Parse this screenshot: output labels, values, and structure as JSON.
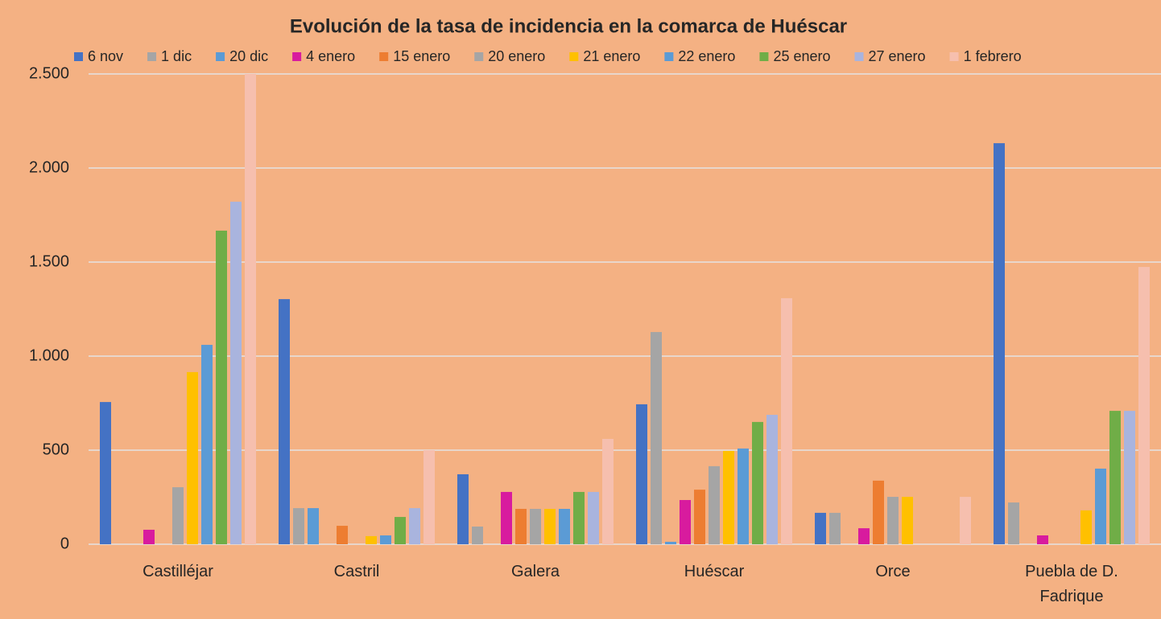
{
  "chart_data": {
    "type": "bar",
    "title": "Evolución de la tasa de incidencia en la comarca de Huéscar",
    "categories": [
      "Castilléjar",
      "Castril",
      "Galera",
      "Huéscar",
      "Orce",
      "Puebla de D. Fadrique"
    ],
    "series": [
      {
        "name": "6 nov",
        "color": "#4472c4",
        "values": [
          756,
          1303,
          372,
          744,
          167,
          2132
        ]
      },
      {
        "name": "1 dic",
        "color": "#a5a5a5",
        "values": [
          0,
          192,
          94,
          1128,
          167,
          222
        ]
      },
      {
        "name": "20 dic",
        "color": "#5b9bd5",
        "values": [
          0,
          192,
          0,
          13,
          0,
          0
        ]
      },
      {
        "name": "4 enero",
        "color": "#d81b9e",
        "values": [
          77,
          0,
          278,
          235,
          85,
          47
        ]
      },
      {
        "name": "15 enero",
        "color": "#ed7d31",
        "values": [
          0,
          98,
          188,
          290,
          338,
          0
        ]
      },
      {
        "name": "20 enero",
        "color": "#a5a5a5",
        "values": [
          303,
          0,
          188,
          415,
          252,
          0
        ]
      },
      {
        "name": "21 enero",
        "color": "#ffc000",
        "values": [
          915,
          43,
          188,
          496,
          252,
          180
        ]
      },
      {
        "name": "22 enero",
        "color": "#5b9bd5",
        "values": [
          1060,
          47,
          188,
          509,
          0,
          402
        ]
      },
      {
        "name": "25 enero",
        "color": "#70ad47",
        "values": [
          1667,
          145,
          278,
          650,
          0,
          709
        ]
      },
      {
        "name": "27 enero",
        "color": "#a9b4de",
        "values": [
          1821,
          192,
          278,
          688,
          0,
          709
        ]
      },
      {
        "name": "1 febrero",
        "color": "#f6bfae",
        "values": [
          2500,
          500,
          560,
          1308,
          252,
          1474
        ]
      }
    ],
    "ylim": [
      0,
      2500
    ],
    "yticks": [
      0,
      500,
      {
        "value": 1000,
        "label": "1.000"
      },
      {
        "value": 1500,
        "label": "1.500"
      },
      {
        "value": 2000,
        "label": "2.000"
      },
      {
        "value": 2500,
        "label": "2.500"
      }
    ],
    "grid": true
  }
}
